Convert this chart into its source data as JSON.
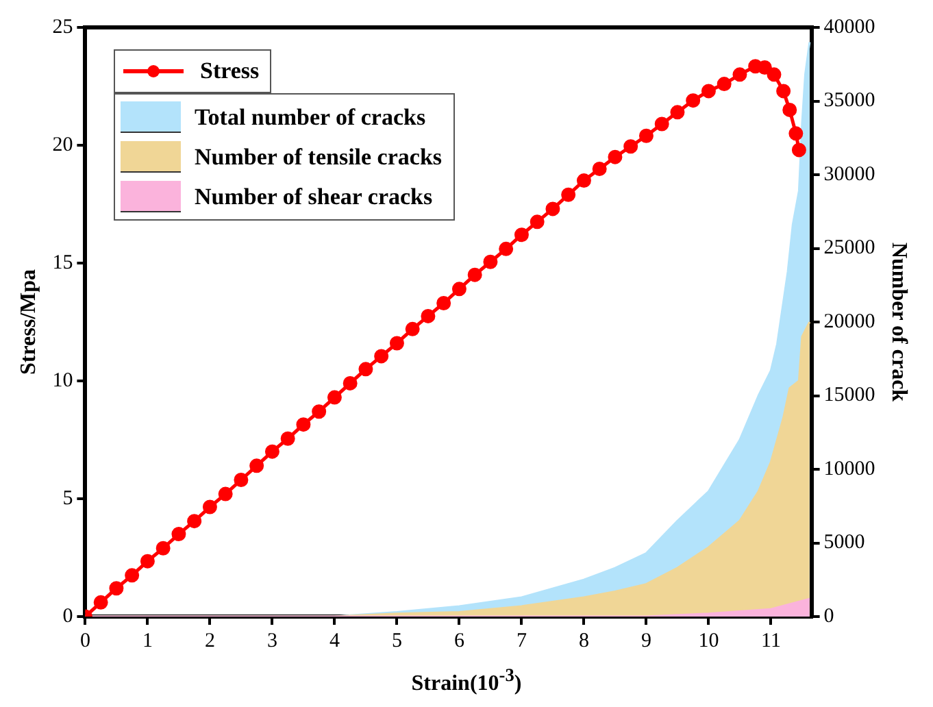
{
  "chart_data": {
    "type": "line",
    "xlabel": "Strain(10$^{-3}$)",
    "ylabel": "Stress/Mpa",
    "y2label": "Number of crack",
    "xlim": [
      0,
      11.65
    ],
    "xticks": [
      0,
      1,
      2,
      3,
      4,
      5,
      6,
      7,
      8,
      9,
      10,
      11
    ],
    "ylim": [
      0,
      25
    ],
    "yticks": [
      0,
      5,
      10,
      15,
      20,
      25
    ],
    "y2lim": [
      0,
      40000
    ],
    "y2ticks": [
      0,
      5000,
      10000,
      15000,
      20000,
      25000,
      30000,
      35000,
      40000
    ],
    "grid": false,
    "legend": "top left",
    "line_style": "solid",
    "series": [
      {
        "name": "Total number of cracks",
        "type": "area",
        "axis": "y2",
        "color": "#b3e3fb",
        "x": [
          0,
          4,
          5,
          6,
          7,
          8,
          8.5,
          9,
          9.5,
          10,
          10.5,
          10.8,
          11,
          11.1,
          11.27,
          11.35,
          11.45,
          11.5,
          11.55,
          11.62
        ],
        "values": [
          0,
          0,
          300,
          700,
          1300,
          2500,
          3300,
          4300,
          6500,
          8500,
          12000,
          15000,
          16700,
          18500,
          23400,
          26600,
          28900,
          33500,
          36800,
          39000
        ]
      },
      {
        "name": "Number of tensile cracks",
        "type": "area",
        "axis": "y2",
        "color": "#f0d696",
        "x": [
          0,
          4,
          5,
          6,
          7,
          8,
          8.5,
          9,
          9.5,
          10,
          10.5,
          10.8,
          11,
          11.2,
          11.3,
          11.45,
          11.5,
          11.62
        ],
        "values": [
          0,
          0,
          200,
          300,
          700,
          1300,
          1700,
          2200,
          3300,
          4700,
          6500,
          8500,
          10500,
          13500,
          15500,
          16000,
          19000,
          20000
        ]
      },
      {
        "name": "Number of shear cracks",
        "type": "area",
        "axis": "y2",
        "color": "#fbb3dc",
        "x": [
          0,
          9,
          10,
          11,
          11.62
        ],
        "values": [
          0,
          0,
          200,
          500,
          1200
        ]
      },
      {
        "name": "Stress",
        "axis": "y",
        "marker": "circle",
        "color": "#ff0000",
        "x": [
          0,
          0.25,
          0.5,
          0.75,
          1,
          1.25,
          1.5,
          1.75,
          2,
          2.25,
          2.5,
          2.75,
          3,
          3.25,
          3.5,
          3.75,
          4,
          4.25,
          4.5,
          4.75,
          5,
          5.25,
          5.5,
          5.75,
          6,
          6.25,
          6.5,
          6.75,
          7,
          7.25,
          7.5,
          7.75,
          8,
          8.25,
          8.5,
          8.75,
          9,
          9.25,
          9.5,
          9.75,
          10,
          10.25,
          10.5,
          10.75,
          10.9,
          11.05,
          11.2,
          11.3,
          11.4,
          11.45
        ],
        "values": [
          0,
          0.6,
          1.2,
          1.75,
          2.35,
          2.9,
          3.5,
          4.05,
          4.65,
          5.2,
          5.8,
          6.4,
          7,
          7.55,
          8.15,
          8.7,
          9.3,
          9.9,
          10.5,
          11.05,
          11.6,
          12.2,
          12.75,
          13.3,
          13.9,
          14.5,
          15.05,
          15.6,
          16.2,
          16.75,
          17.3,
          17.9,
          18.5,
          19,
          19.5,
          19.95,
          20.4,
          20.9,
          21.4,
          21.9,
          22.3,
          22.6,
          23,
          23.35,
          23.3,
          23,
          22.3,
          21.5,
          20.5,
          19.8
        ]
      }
    ]
  }
}
